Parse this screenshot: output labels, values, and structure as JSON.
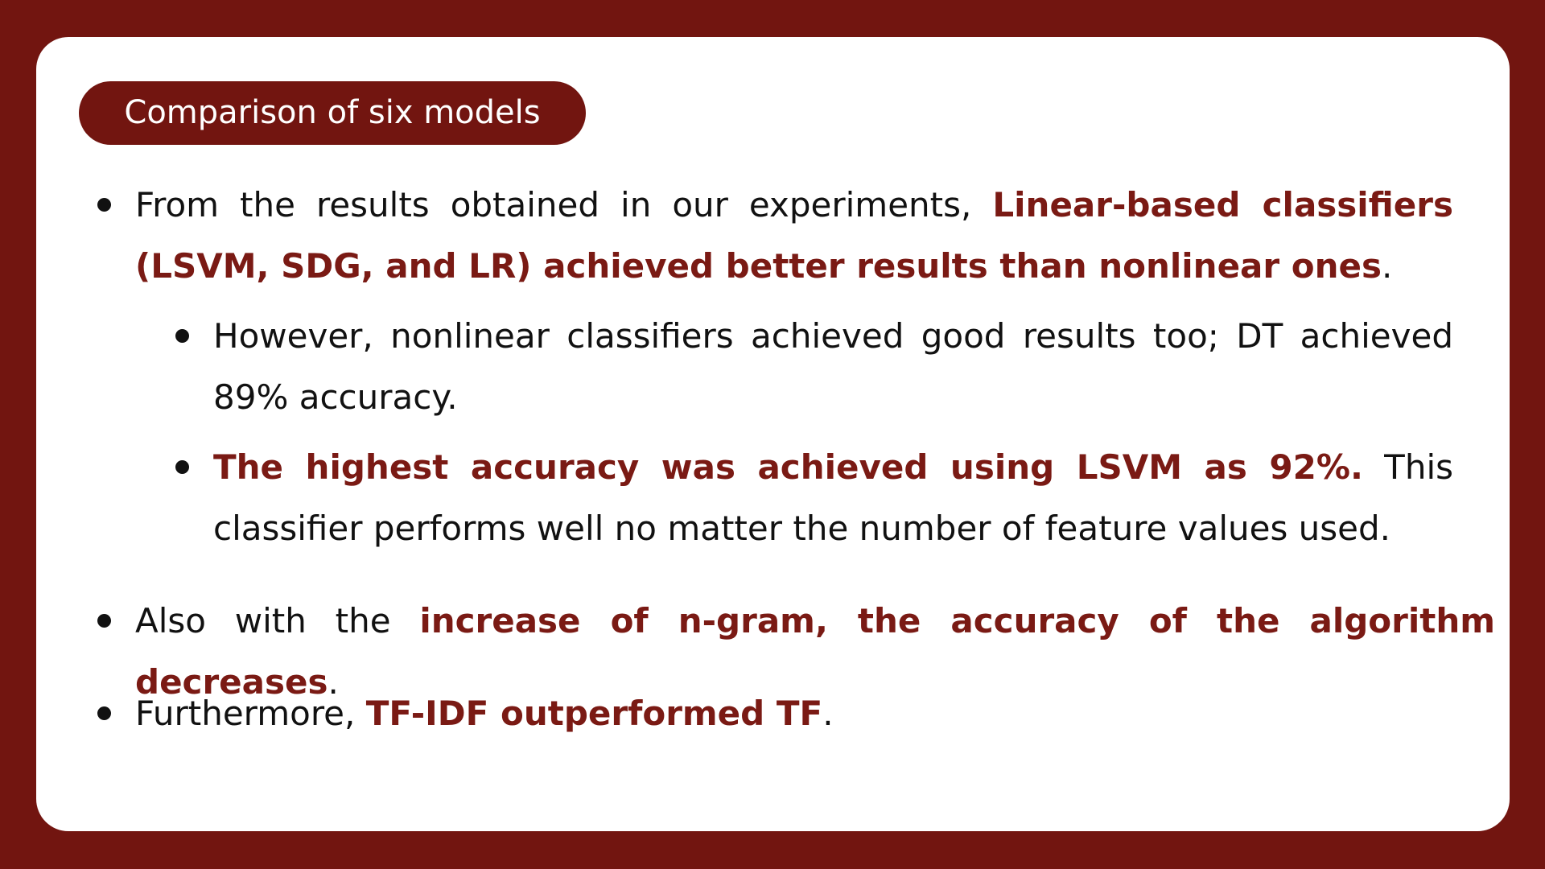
{
  "title": "Comparison of six models",
  "bullets": {
    "b1": {
      "pre": "From the results obtained in our experiments, ",
      "highlight": "Linear-based classifiers (LSVM, SDG, and LR) achieved better results than nonlinear ones",
      "post": "."
    },
    "s1": {
      "text": "However, nonlinear classifiers achieved good results too; DT achieved 89% accuracy."
    },
    "s2": {
      "highlight": "The highest accuracy was achieved using LSVM as 92%.",
      "post": " This classifier performs well no matter the number of feature values used."
    },
    "b2": {
      "pre": "Also with the ",
      "highlight": "increase of n-gram, the accuracy of the algorithm decreases",
      "post": "."
    },
    "b3": {
      "pre": "Furthermore, ",
      "highlight": "TF-IDF outperformed TF",
      "post": "."
    }
  },
  "colors": {
    "background": "#721510",
    "card": "#ffffff",
    "highlight": "#7a1a14",
    "text": "#111111"
  }
}
